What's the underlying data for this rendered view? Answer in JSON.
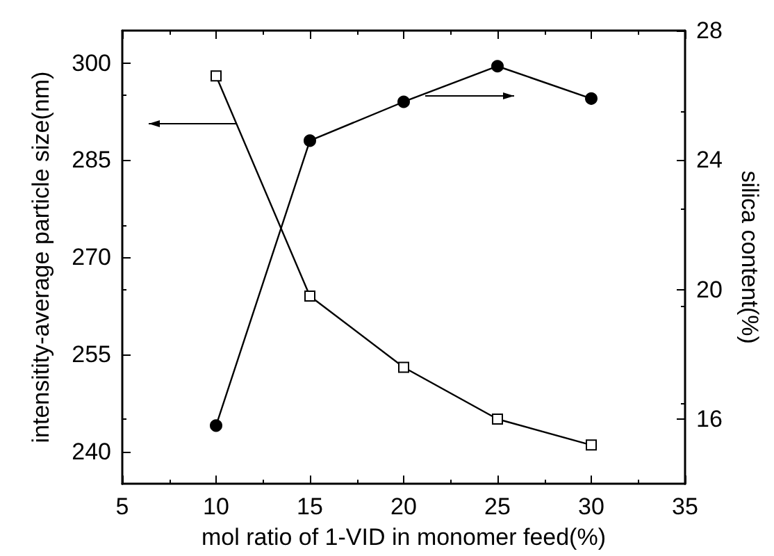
{
  "chart_data": {
    "type": "line",
    "xlabel": "mol ratio of 1-VID in monomer feed(%)",
    "ylabel": "intensitity-average particle size(nm)",
    "y2label": "silica content(%)",
    "x": [
      10,
      15,
      20,
      25,
      30
    ],
    "series": [
      {
        "color": "#000000",
        "marker": "square",
        "values": [
          298,
          264,
          253,
          245,
          241
        ]
      },
      {
        "color": "#000000",
        "marker": "circle",
        "axis": "y2",
        "values": [
          15.8,
          24.6,
          25.8,
          26.9,
          25.9
        ]
      }
    ],
    "xlim": [
      5,
      35
    ],
    "xticks": [
      5,
      10,
      15,
      20,
      25,
      30,
      35
    ],
    "ylim": [
      235,
      305
    ],
    "yticks": [
      240,
      255,
      270,
      285,
      300
    ],
    "y2lim": [
      14,
      28
    ],
    "y2ticks": [
      16,
      20,
      24,
      28
    ],
    "grid": false,
    "line_style": "solid"
  }
}
